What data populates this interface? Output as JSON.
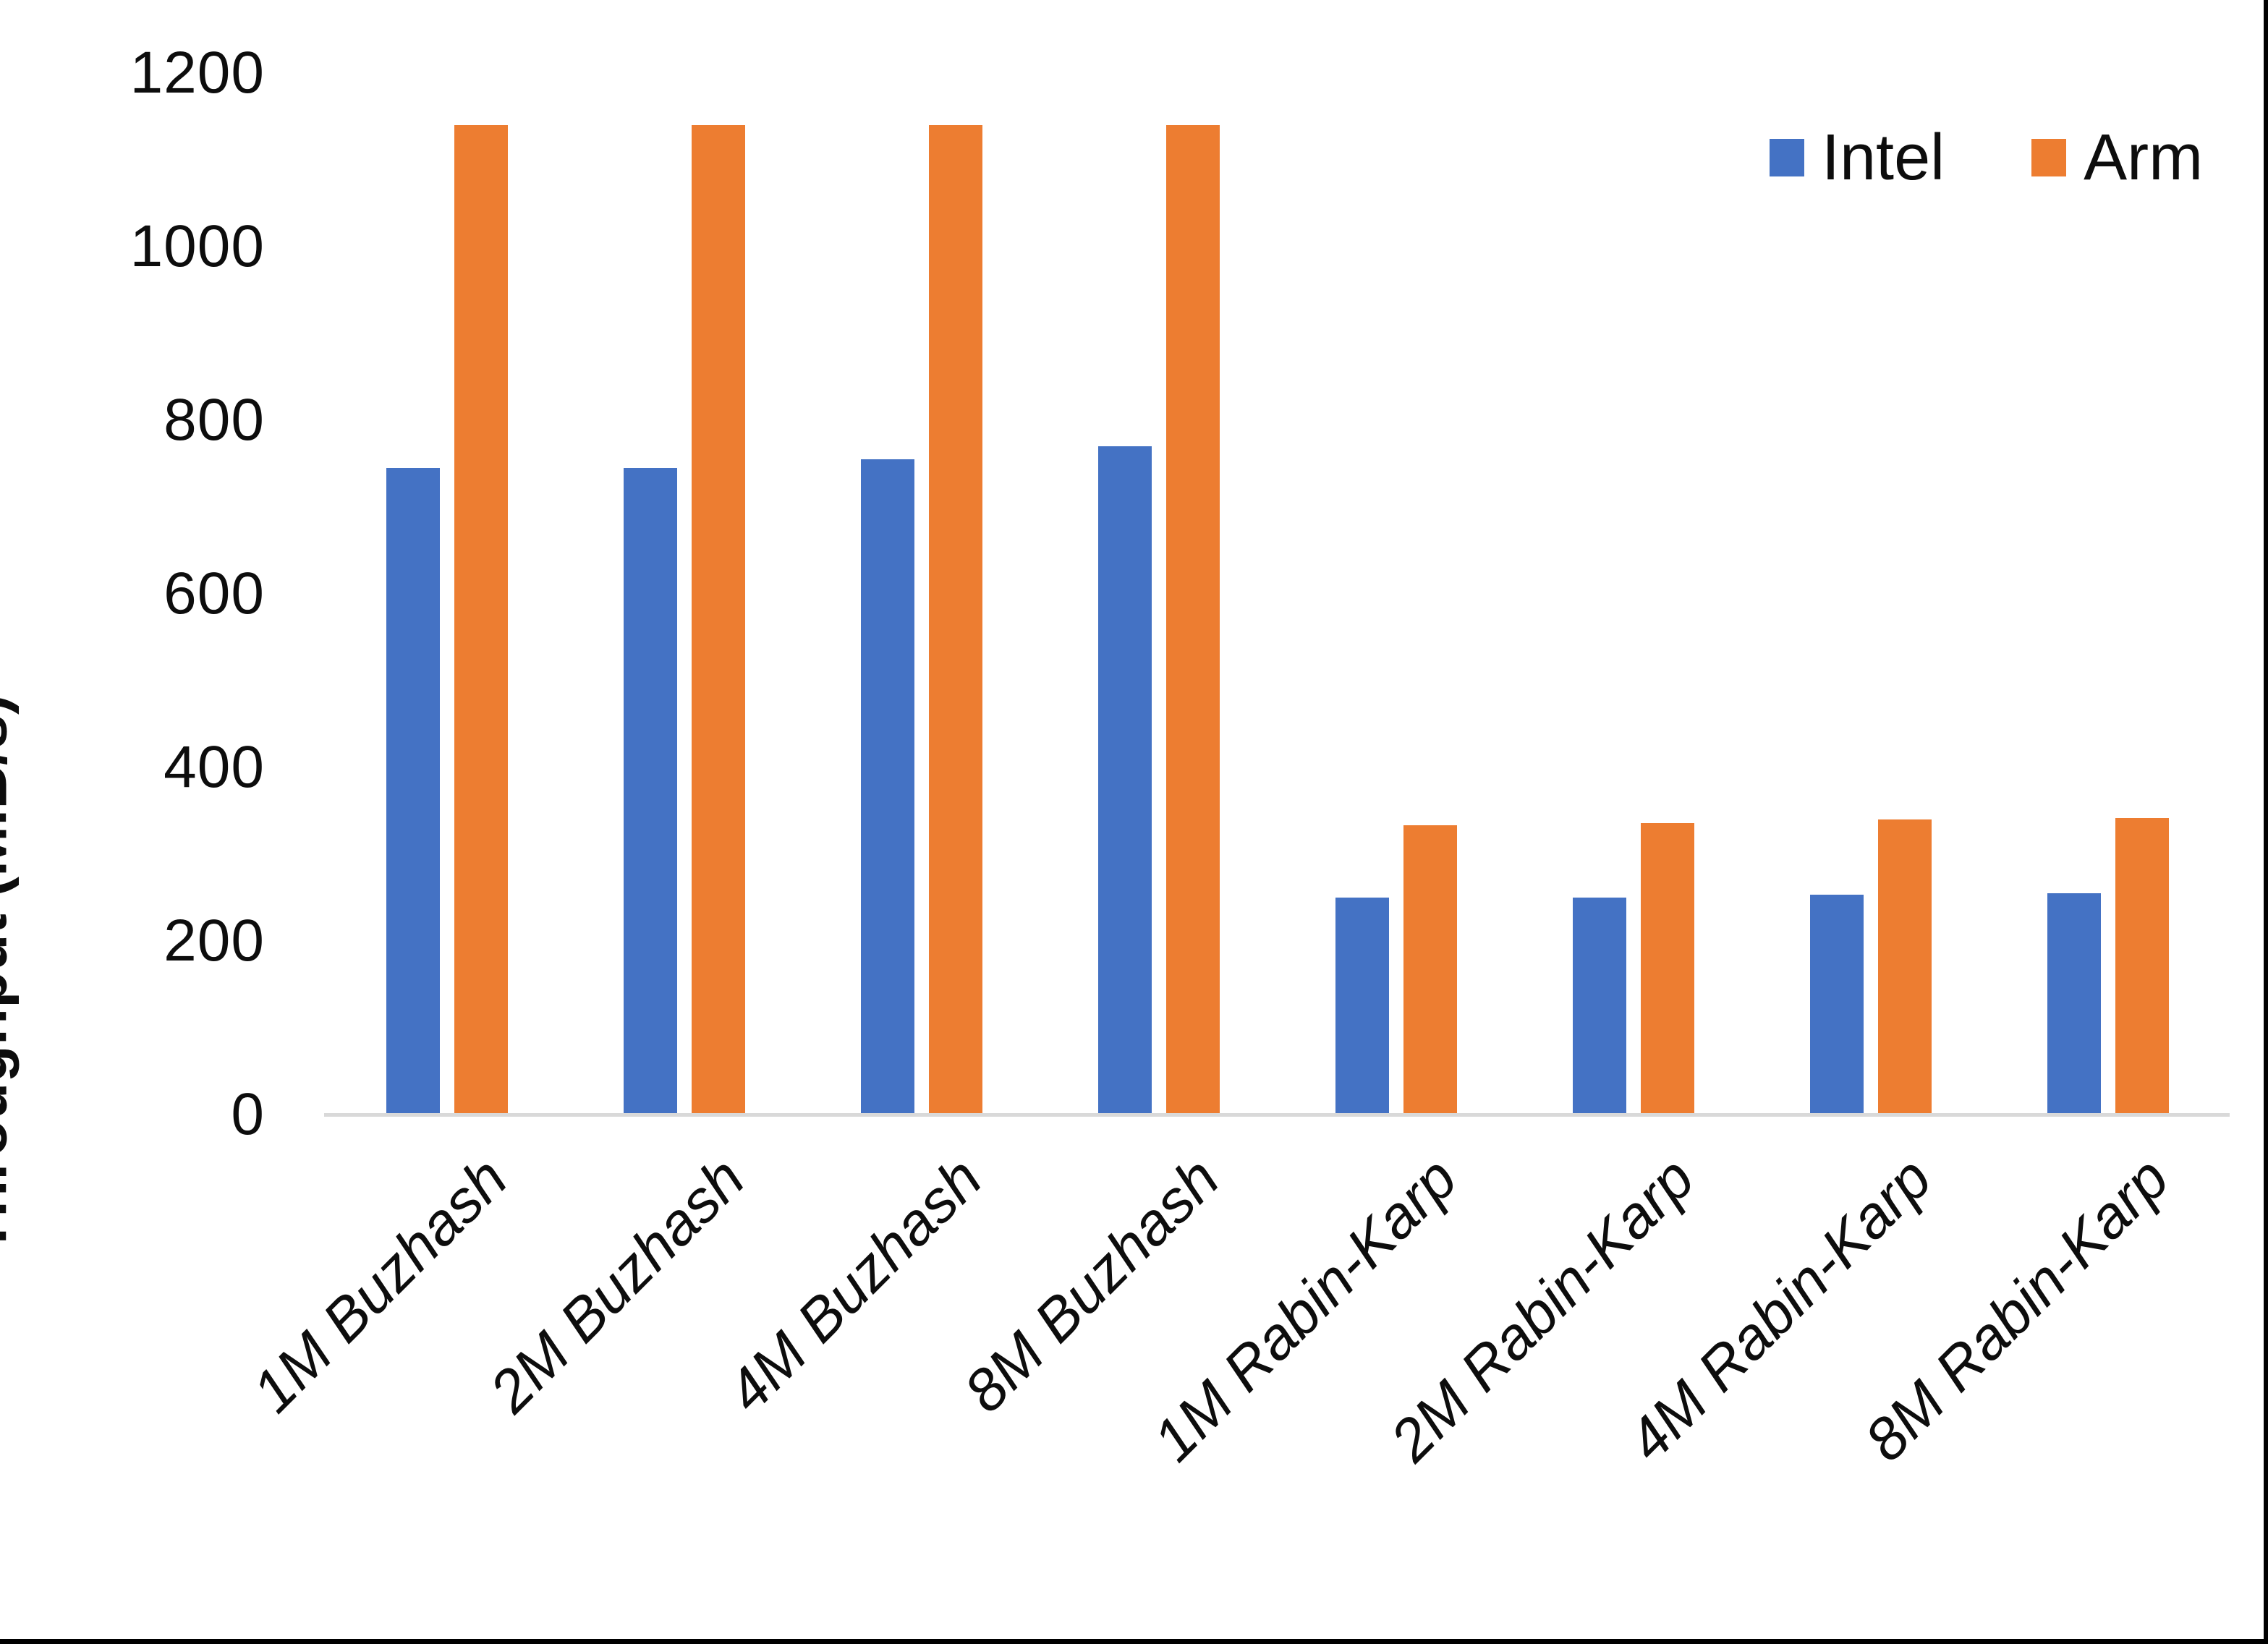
{
  "chart_data": {
    "type": "bar",
    "title": "",
    "xlabel": "",
    "ylabel": "Throughput (MiB/s)",
    "categories": [
      "1M Buzhash",
      "2M Buzhash",
      "4M Buzhash",
      "8M Buzhash",
      "1M Rabin-Karp",
      "2M Rabin-Karp",
      "4M Rabin-Karp",
      "8M Rabin-Karp"
    ],
    "series": [
      {
        "name": "Intel",
        "color": "#4472C4",
        "values": [
          745,
          745,
          755,
          770,
          250,
          250,
          253,
          255
        ]
      },
      {
        "name": "Arm",
        "color": "#ED7D31",
        "values": [
          1140,
          1140,
          1140,
          1140,
          333,
          336,
          340,
          342
        ]
      }
    ],
    "ylim": [
      0,
      1200
    ],
    "yticks": [
      0,
      200,
      400,
      600,
      800,
      1000,
      1200
    ],
    "grid": false,
    "legend_position": "top-right",
    "axis_line_color": "#D9D9D9",
    "text_color": "#000000"
  }
}
